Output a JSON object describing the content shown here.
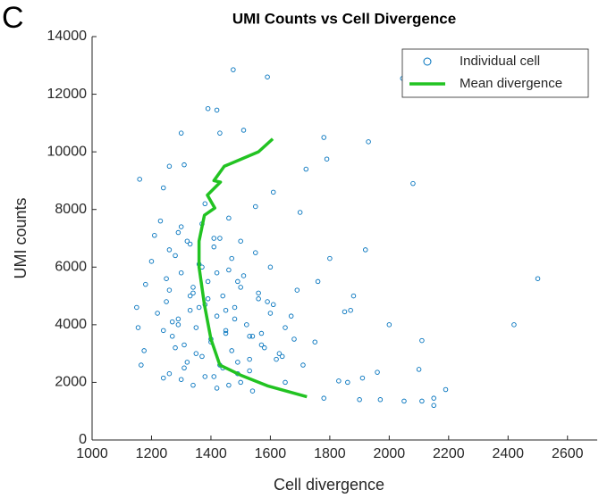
{
  "chart_data": {
    "type": "scatter",
    "panel_label": "C",
    "title": "UMI Counts vs Cell Divergence",
    "x_label": "Cell divergence",
    "y_label": "UMI counts",
    "xlim": [
      1000,
      2700
    ],
    "ylim": [
      0,
      14000
    ],
    "xticks": [
      1000,
      1200,
      1400,
      1600,
      1800,
      2000,
      2200,
      2400,
      2600
    ],
    "yticks": [
      0,
      2000,
      4000,
      6000,
      8000,
      10000,
      12000,
      14000
    ],
    "legend_position": "upper right",
    "series": [
      {
        "name": "Individual cell",
        "type": "scatter",
        "color": "#0072bd",
        "x": [
          1475,
          1590,
          2045,
          1390,
          1420,
          1300,
          1510,
          1430,
          1780,
          1930,
          1160,
          1260,
          1310,
          1720,
          1790,
          2080,
          1240,
          1550,
          1700,
          1610,
          1920,
          2500,
          2420,
          2000,
          2110,
          2100,
          1960,
          1970,
          2050,
          2110,
          2150,
          2150,
          2190,
          1780,
          1900,
          1910,
          1860,
          1830,
          1870,
          1850,
          1880,
          1800,
          1760,
          1150,
          1155,
          1165,
          1175,
          1180,
          1200,
          1210,
          1230,
          1240,
          1250,
          1260,
          1270,
          1280,
          1290,
          1300,
          1310,
          1320,
          1330,
          1340,
          1350,
          1360,
          1370,
          1380,
          1390,
          1400,
          1410,
          1420,
          1430,
          1440,
          1450,
          1460,
          1470,
          1480,
          1490,
          1500,
          1520,
          1540,
          1560,
          1580,
          1600,
          1620,
          1650,
          1680,
          1250,
          1270,
          1290,
          1310,
          1330,
          1350,
          1370,
          1390,
          1410,
          1430,
          1450,
          1470,
          1490,
          1510,
          1530,
          1550,
          1570,
          1600,
          1640,
          1690,
          1220,
          1240,
          1260,
          1280,
          1300,
          1320,
          1340,
          1360,
          1380,
          1400,
          1420,
          1440,
          1460,
          1480,
          1500,
          1530,
          1560,
          1590,
          1630,
          1670,
          1710,
          1750,
          1290,
          1330,
          1370,
          1410,
          1450,
          1490,
          1530,
          1570,
          1610,
          1650,
          1260,
          1300,
          1340,
          1380,
          1420,
          1460,
          1500,
          1540
        ],
        "values": [
          12850,
          12600,
          12550,
          11500,
          11450,
          10650,
          10750,
          10650,
          10500,
          10350,
          9050,
          9500,
          9550,
          9400,
          9750,
          8900,
          8750,
          8100,
          7900,
          8600,
          6600,
          5600,
          4000,
          4000,
          3450,
          2450,
          2350,
          1400,
          1350,
          1350,
          1200,
          1450,
          1750,
          1450,
          1400,
          2150,
          2000,
          2050,
          4500,
          4450,
          5000,
          6300,
          5500,
          4600,
          3900,
          2600,
          3100,
          5400,
          6200,
          7100,
          7600,
          2150,
          4800,
          5200,
          3600,
          6400,
          4200,
          5800,
          3300,
          6900,
          4500,
          5100,
          3900,
          6100,
          2900,
          4700,
          5500,
          3400,
          6700,
          4300,
          2600,
          5000,
          3800,
          5900,
          3100,
          4600,
          2300,
          5300,
          4000,
          3600,
          4900,
          3200,
          4400,
          2800,
          3900,
          3500,
          5600,
          4100,
          7200,
          2500,
          6800,
          3000,
          7500,
          4900,
          2200,
          7000,
          3700,
          6300,
          2700,
          5700,
          2400,
          6500,
          3300,
          6000,
          2900,
          5200,
          4400,
          3800,
          6600,
          3200,
          7400,
          2700,
          5300,
          4600,
          8200,
          3500,
          5800,
          2500,
          7700,
          4200,
          6900,
          3600,
          5100,
          4800,
          3000,
          4300,
          2600,
          3400,
          4000,
          5000,
          6000,
          7000,
          4500,
          5500,
          2800,
          3700,
          4700,
          2000,
          2300,
          2100,
          1900,
          2200,
          1800,
          1900,
          2000,
          1700
        ],
        "marker": "circle"
      },
      {
        "name": "Mean divergence",
        "type": "line",
        "color": "#22c322",
        "x": [
          1723,
          1590,
          1500,
          1430,
          1400,
          1378,
          1360,
          1360,
          1378,
          1413,
          1388,
          1432,
          1410,
          1445,
          1560,
          1608
        ],
        "values": [
          1500,
          1880,
          2250,
          2600,
          3500,
          4700,
          6000,
          6900,
          7800,
          8050,
          8500,
          8950,
          9000,
          9500,
          10000,
          10450
        ]
      }
    ]
  }
}
